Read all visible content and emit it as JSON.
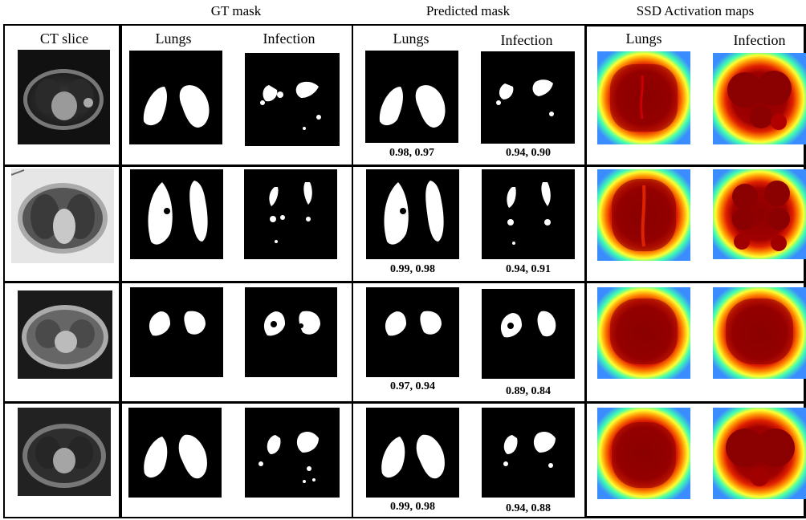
{
  "headers": {
    "gt": "GT mask",
    "pred": "Predicted mask",
    "ssd": "SSD Activation maps"
  },
  "columns": {
    "ct": "CT slice",
    "lungs": "Lungs",
    "infection": "Infection"
  },
  "scores": [
    {
      "lungs": "0.98, 0.97",
      "infection": "0.94, 0.90"
    },
    {
      "lungs": "0.99, 0.98",
      "infection": "0.94, 0.91"
    },
    {
      "lungs": "0.97, 0.94",
      "infection": "0.89, 0.84"
    },
    {
      "lungs": "0.99, 0.98",
      "infection": "0.94, 0.88"
    }
  ],
  "colors": {
    "mask_bg": "#000000",
    "mask_fg": "#ffffff",
    "heat_outer": "#4da6ff",
    "heat_core": "#8b0000"
  }
}
